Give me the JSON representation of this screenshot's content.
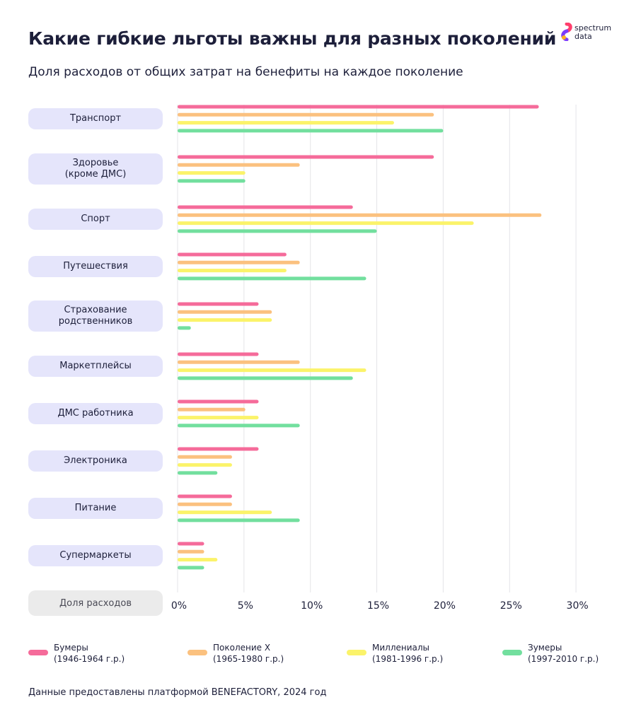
{
  "header": {
    "title": "Какие гибкие льготы важны для разных поколений",
    "subtitle": "Доля расходов от общих затрат на бенефиты на каждое поколение"
  },
  "logo": {
    "line1": "spectrum",
    "line2": "data"
  },
  "axis_label": "Доля расходов",
  "footer": "Данные предоставлены платформой BENEFACTORY, 2024 год",
  "legend": [
    {
      "label": "Бумеры\n(1946-1964 г.р.)",
      "color": "#f56b9a"
    },
    {
      "label": "Поколение X\n(1965-1980 г.р.)",
      "color": "#fbc17f"
    },
    {
      "label": "Миллениалы\n(1981-1996 г.р.)",
      "color": "#fbf36a"
    },
    {
      "label": "Зумеры\n(1997-2010 г.р.)",
      "color": "#72df9e"
    }
  ],
  "chart_data": {
    "type": "bar",
    "orientation": "horizontal",
    "title": "Какие гибкие льготы важны для разных поколений",
    "subtitle": "Доля расходов от общих затрат на бенефиты на каждое поколение",
    "xlabel": "Доля расходов",
    "xlim": [
      0,
      30
    ],
    "xticks": [
      "0%",
      "5%",
      "10%",
      "15%",
      "20%",
      "25%",
      "30%"
    ],
    "grid": true,
    "legend_position": "bottom",
    "categories": [
      "Транспорт",
      "Здоровье\n(кроме ДМС)",
      "Спорт",
      "Путешествия",
      "Страхование\nродственников",
      "Маркетплейсы",
      "ДМС работника",
      "Электроника",
      "Питание",
      "Супермаркеты"
    ],
    "series": [
      {
        "name": "Бумеры (1946-1964 г.р.)",
        "color": "#f56b9a",
        "values": [
          27.2,
          19.3,
          13.2,
          8.2,
          6.1,
          6.1,
          6.1,
          6.1,
          4.1,
          2.0
        ]
      },
      {
        "name": "Поколение X (1965-1980 г.р.)",
        "color": "#fbc17f",
        "values": [
          19.3,
          9.2,
          27.4,
          9.2,
          7.1,
          9.2,
          5.1,
          4.1,
          4.1,
          2.0
        ]
      },
      {
        "name": "Миллениалы (1981-1996 г.р.)",
        "color": "#fbf36a",
        "values": [
          16.3,
          5.1,
          22.3,
          8.2,
          7.1,
          14.2,
          6.1,
          4.1,
          7.1,
          3.0
        ]
      },
      {
        "name": "Зумеры (1997-2010 г.р.)",
        "color": "#72df9e",
        "values": [
          20.0,
          5.1,
          15.0,
          14.2,
          1.0,
          13.2,
          9.2,
          3.0,
          9.2,
          2.0
        ]
      }
    ]
  }
}
